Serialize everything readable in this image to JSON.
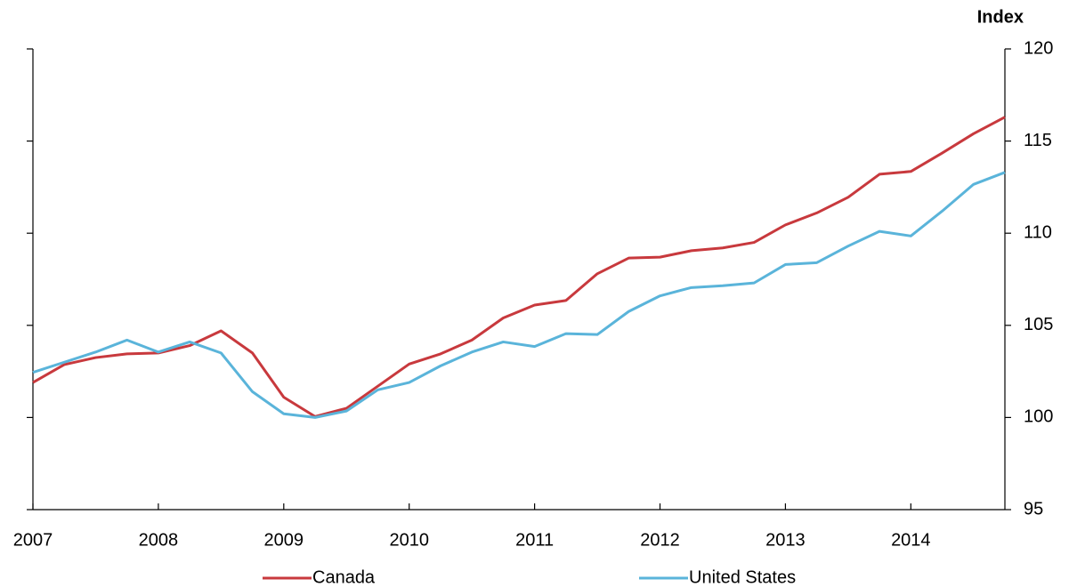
{
  "chart_data": {
    "type": "line",
    "y_axis_label": "Index",
    "x": [
      2007,
      2007.25,
      2007.5,
      2007.75,
      2008,
      2008.25,
      2008.5,
      2008.75,
      2009,
      2009.25,
      2009.5,
      2009.75,
      2010,
      2010.25,
      2010.5,
      2010.75,
      2011,
      2011.25,
      2011.5,
      2011.75,
      2012,
      2012.25,
      2012.5,
      2012.75,
      2013,
      2013.25,
      2013.5,
      2013.75,
      2014,
      2014.25,
      2014.5,
      2014.75
    ],
    "series": [
      {
        "name": "Canada",
        "color": "#c8393d",
        "values": [
          101.9,
          102.87,
          103.25,
          103.45,
          103.5,
          103.9,
          104.7,
          103.5,
          101.1,
          100.05,
          100.5,
          101.7,
          102.9,
          103.45,
          104.2,
          105.4,
          106.1,
          106.35,
          107.8,
          108.65,
          108.7,
          109.05,
          109.2,
          109.5,
          110.45,
          111.1,
          111.95,
          113.2,
          113.35,
          114.35,
          115.4,
          116.3
        ]
      },
      {
        "name": "United States",
        "color": "#5ab4da",
        "values": [
          102.45,
          103.0,
          103.55,
          104.2,
          103.55,
          104.1,
          103.5,
          101.4,
          100.2,
          100.0,
          100.35,
          101.5,
          101.9,
          102.8,
          103.55,
          104.1,
          103.85,
          104.55,
          104.5,
          105.75,
          106.6,
          107.05,
          107.15,
          107.3,
          108.3,
          108.4,
          109.3,
          110.1,
          109.85,
          111.2,
          112.65,
          113.3
        ]
      }
    ],
    "xlim": [
      2007,
      2014.75
    ],
    "xticks": [
      2007,
      2008,
      2009,
      2010,
      2011,
      2012,
      2013,
      2014
    ],
    "ylim": [
      95,
      120
    ],
    "yticks": [
      95,
      100,
      105,
      110,
      115,
      120
    ],
    "legend": "bottom"
  }
}
